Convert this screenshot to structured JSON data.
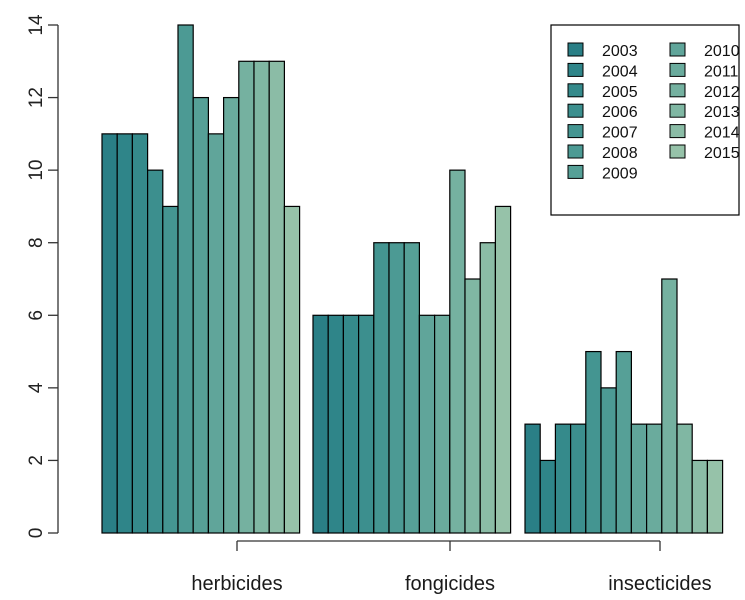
{
  "chart_data": {
    "type": "bar",
    "categories": [
      "herbicides",
      "fongicides",
      "insecticides"
    ],
    "series": [
      {
        "name": "2003",
        "color": "#2a7f86",
        "values": [
          11,
          6,
          3
        ]
      },
      {
        "name": "2004",
        "color": "#2f8589",
        "values": [
          11,
          6,
          2
        ]
      },
      {
        "name": "2005",
        "color": "#358a8b",
        "values": [
          11,
          6,
          3
        ]
      },
      {
        "name": "2006",
        "color": "#3c8f8e",
        "values": [
          10,
          6,
          3
        ]
      },
      {
        "name": "2007",
        "color": "#449591",
        "values": [
          9,
          8,
          5
        ]
      },
      {
        "name": "2008",
        "color": "#4c9a94",
        "values": [
          14,
          8,
          4
        ]
      },
      {
        "name": "2009",
        "color": "#56a097",
        "values": [
          12,
          8,
          5
        ]
      },
      {
        "name": "2010",
        "color": "#60a59a",
        "values": [
          11,
          6,
          3
        ]
      },
      {
        "name": "2011",
        "color": "#6aab9d",
        "values": [
          12,
          6,
          3
        ]
      },
      {
        "name": "2012",
        "color": "#75b1a0",
        "values": [
          13,
          10,
          7
        ]
      },
      {
        "name": "2013",
        "color": "#80b7a3",
        "values": [
          13,
          7,
          3
        ]
      },
      {
        "name": "2014",
        "color": "#8bbca6",
        "values": [
          13,
          8,
          2
        ]
      },
      {
        "name": "2015",
        "color": "#96c2a9",
        "values": [
          9,
          9,
          2
        ]
      }
    ],
    "ylim": [
      0,
      14
    ],
    "yticks": [
      "0",
      "2",
      "4",
      "6",
      "8",
      "10",
      "12",
      "14"
    ],
    "legend_position": "top-right",
    "legend_columns": 2,
    "grid": false,
    "title": "",
    "xlabel": "",
    "ylabel": ""
  }
}
